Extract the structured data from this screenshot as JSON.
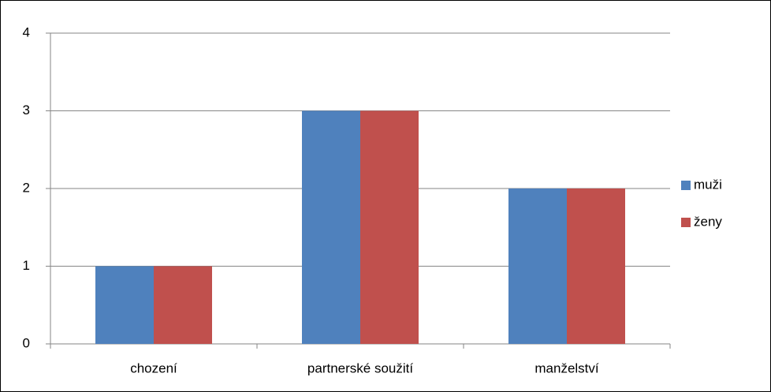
{
  "chart_data": {
    "type": "bar",
    "categories": [
      "chození",
      "partnerské soužití",
      "manželství"
    ],
    "series": [
      {
        "name": "muži",
        "color": "#4f81bd",
        "values": [
          1,
          3,
          2
        ]
      },
      {
        "name": "ženy",
        "color": "#c0504d",
        "values": [
          1,
          3,
          2
        ]
      }
    ],
    "ylim": [
      0,
      4
    ],
    "yticks": [
      0,
      1,
      2,
      3,
      4
    ],
    "grid": true,
    "legend": "right"
  }
}
